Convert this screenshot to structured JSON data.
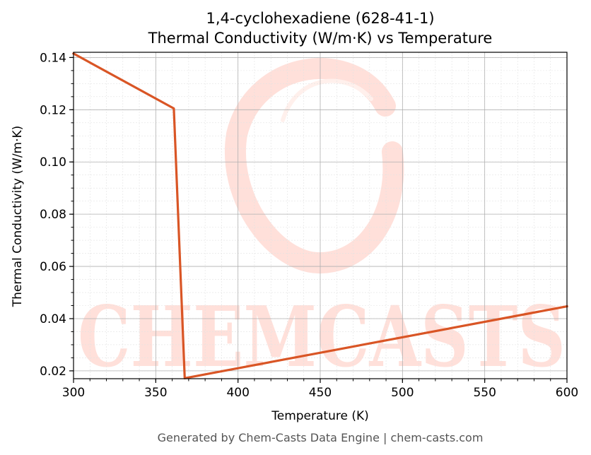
{
  "chart_data": {
    "type": "line",
    "title_line1": "1,4-cyclohexadiene (628-41-1)",
    "title_line2": "Thermal Conductivity (W/m·K) vs Temperature",
    "xlabel": "Temperature (K)",
    "ylabel": "Thermal Conductivity (W/m·K)",
    "xlim": [
      300,
      600
    ],
    "ylim": [
      0.017,
      0.142
    ],
    "xticks": [
      300,
      350,
      400,
      450,
      500,
      550,
      600
    ],
    "xtick_labels": [
      "300",
      "350",
      "400",
      "450",
      "500",
      "550",
      "600"
    ],
    "yticks": [
      0.02,
      0.04,
      0.06,
      0.08,
      0.1,
      0.12,
      0.14
    ],
    "ytick_labels": [
      "0.02",
      "0.04",
      "0.06",
      "0.08",
      "0.10",
      "0.12",
      "0.14"
    ],
    "grid": true,
    "series": [
      {
        "color": "#d95525",
        "x": [
          300,
          361,
          367.6,
          600
        ],
        "y": [
          0.1415,
          0.1205,
          0.0172,
          0.0447
        ]
      }
    ]
  },
  "watermark": {
    "text": "CHEMCASTS",
    "color": "#ffe0da"
  },
  "footer": "Generated by Chem-Casts Data Engine | chem-casts.com"
}
